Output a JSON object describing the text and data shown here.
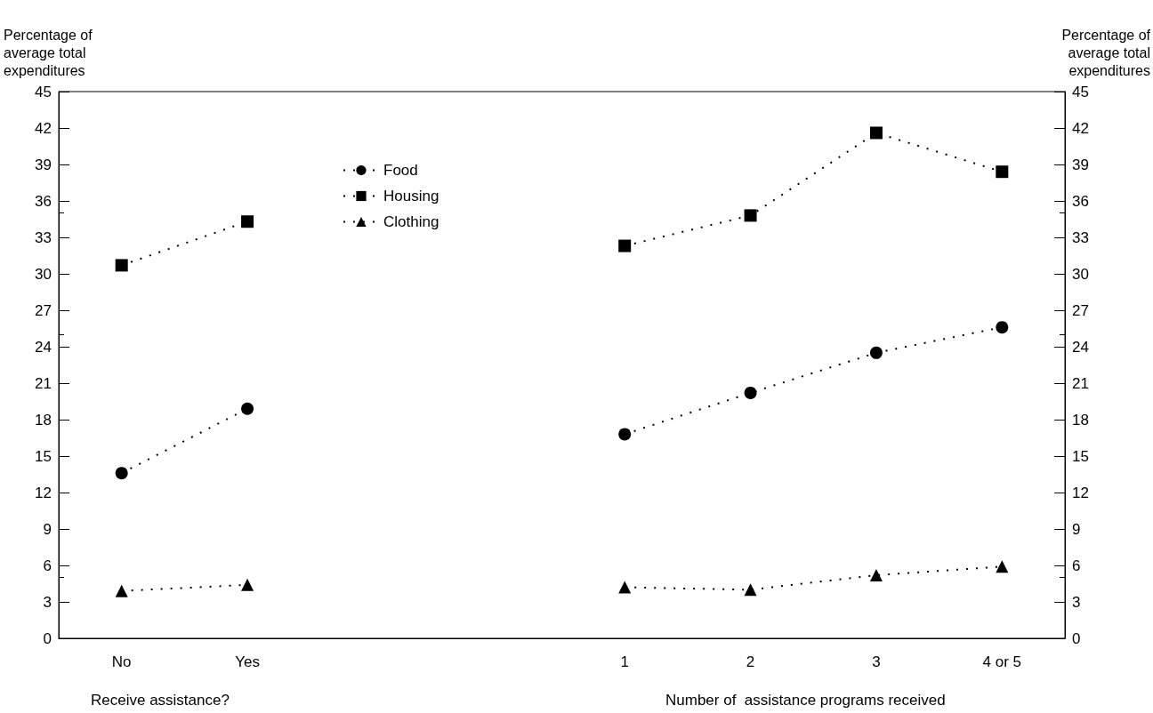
{
  "chart_data": {
    "type": "line",
    "ylabel": "Percentage of average total expenditures",
    "y2label": "Percentage of average total expenditures",
    "categories": [
      "No",
      "Yes",
      null,
      null,
      "1",
      "2",
      "3",
      "4 or 5"
    ],
    "series": [
      {
        "name": "Food",
        "color": "#000000",
        "marker": "circle",
        "values": [
          13.6,
          18.9,
          null,
          null,
          16.8,
          20.2,
          23.5,
          25.6
        ]
      },
      {
        "name": "Housing",
        "color": "#000000",
        "marker": "square",
        "values": [
          30.7,
          34.3,
          null,
          null,
          32.3,
          34.8,
          41.6,
          38.4
        ]
      },
      {
        "name": "Clothing",
        "color": "#000000",
        "marker": "triangle",
        "values": [
          3.9,
          4.4,
          null,
          null,
          4.2,
          4.0,
          5.2,
          5.9
        ]
      }
    ],
    "ylim": [
      0,
      45
    ],
    "yticks": [
      0,
      3,
      6,
      9,
      12,
      15,
      18,
      21,
      24,
      27,
      30,
      33,
      36,
      39,
      42,
      45
    ],
    "y2lim": [
      0,
      45
    ],
    "y2ticks": [
      0,
      3,
      6,
      9,
      12,
      15,
      18,
      21,
      24,
      27,
      30,
      33,
      36,
      39,
      42,
      45
    ],
    "annotations": [
      "Receive assistance?",
      "Number of  assistance programs received"
    ],
    "legend": "top left",
    "line_style": "dotted",
    "grid": false
  }
}
